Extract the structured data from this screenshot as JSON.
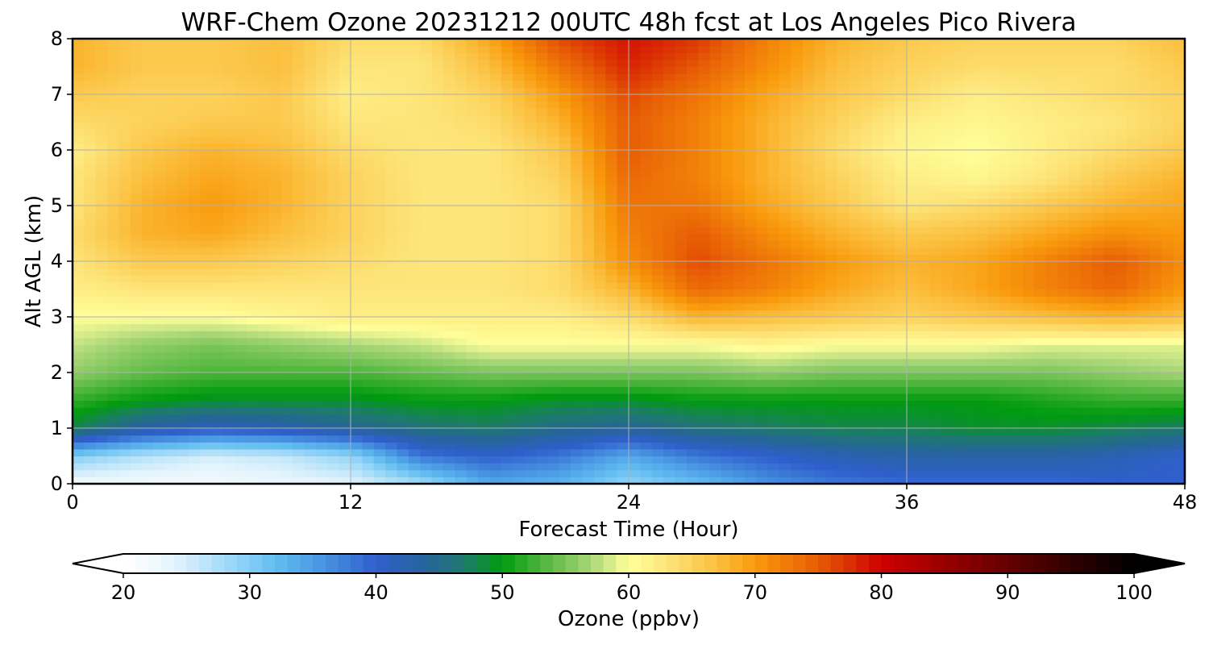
{
  "chart_data": {
    "type": "heatmap",
    "title": "WRF-Chem Ozone  20231212 00UTC 48h fcst at Los Angeles Pico Rivera",
    "xlabel": "Forecast Time (Hour)",
    "ylabel": "Alt AGL (km)",
    "xlim": [
      0,
      48
    ],
    "ylim": [
      0,
      8
    ],
    "xticks": [
      "0",
      "12",
      "24",
      "36",
      "48"
    ],
    "yticks": [
      "0",
      "1",
      "2",
      "3",
      "4",
      "5",
      "6",
      "7",
      "8"
    ],
    "grid": true,
    "x": [
      0,
      3,
      6,
      9,
      12,
      15,
      18,
      21,
      24,
      27,
      30,
      33,
      36,
      39,
      42,
      45,
      48
    ],
    "y": [
      0,
      0.5,
      1,
      1.5,
      2,
      2.5,
      3,
      3.5,
      4,
      4.5,
      5,
      5.5,
      6,
      6.5,
      7,
      7.5,
      8
    ],
    "z": [
      [
        22,
        22,
        22,
        23,
        24,
        28,
        34,
        33,
        29,
        32,
        36,
        38,
        39,
        39,
        39,
        40,
        40
      ],
      [
        30,
        27,
        25,
        26,
        29,
        38,
        40,
        38,
        34,
        38,
        40,
        42,
        43,
        43,
        43,
        42,
        40
      ],
      [
        48,
        43,
        41,
        42,
        44,
        46,
        47,
        45,
        44,
        46,
        47,
        48,
        48,
        49,
        49,
        48,
        47
      ],
      [
        52,
        50,
        49,
        49,
        49,
        50,
        50,
        49,
        49,
        50,
        50,
        50,
        50,
        50,
        51,
        52,
        52
      ],
      [
        56,
        54,
        53,
        53,
        53,
        54,
        55,
        55,
        55,
        55,
        56,
        55,
        55,
        55,
        55,
        56,
        57
      ],
      [
        58,
        56,
        55,
        56,
        57,
        58,
        60,
        60,
        60,
        60,
        61,
        60,
        60,
        60,
        59,
        59,
        59
      ],
      [
        60,
        60,
        60,
        61,
        62,
        62,
        62,
        62,
        64,
        68,
        67,
        66,
        65,
        66,
        67,
        68,
        67
      ],
      [
        62,
        63,
        63,
        63,
        63,
        63,
        63,
        64,
        68,
        74,
        72,
        69,
        67,
        69,
        72,
        74,
        70
      ],
      [
        63,
        66,
        66,
        65,
        64,
        63,
        63,
        64,
        71,
        76,
        73,
        70,
        68,
        69,
        72,
        75,
        71
      ],
      [
        64,
        68,
        69,
        67,
        65,
        63,
        63,
        64,
        72,
        75,
        71,
        68,
        66,
        67,
        69,
        71,
        70
      ],
      [
        63,
        68,
        70,
        68,
        65,
        63,
        63,
        64,
        73,
        73,
        69,
        66,
        63,
        64,
        66,
        68,
        69
      ],
      [
        63,
        67,
        69,
        68,
        65,
        63,
        63,
        65,
        74,
        72,
        68,
        65,
        62,
        61,
        63,
        66,
        68
      ],
      [
        62,
        66,
        68,
        67,
        64,
        63,
        63,
        66,
        75,
        72,
        68,
        64,
        61,
        60,
        62,
        64,
        66
      ],
      [
        64,
        65,
        66,
        66,
        63,
        63,
        64,
        68,
        75,
        72,
        68,
        65,
        62,
        61,
        62,
        63,
        65
      ],
      [
        66,
        65,
        65,
        66,
        62,
        63,
        65,
        70,
        76,
        73,
        69,
        66,
        64,
        62,
        63,
        64,
        65
      ],
      [
        68,
        66,
        66,
        67,
        63,
        63,
        67,
        73,
        78,
        75,
        71,
        67,
        65,
        64,
        64,
        64,
        66
      ],
      [
        68,
        66,
        66,
        67,
        64,
        64,
        69,
        76,
        79,
        77,
        72,
        68,
        66,
        65,
        65,
        65,
        67
      ]
    ],
    "colorbar": {
      "label": "Ozone  (ppbv)",
      "range": [
        20,
        100
      ],
      "ticks": [
        "20",
        "30",
        "40",
        "50",
        "60",
        "70",
        "80",
        "90",
        "100"
      ],
      "extend": "both"
    }
  },
  "colors": {
    "stops": [
      [
        20,
        "#ffffff"
      ],
      [
        24,
        "#e4f4fc"
      ],
      [
        29,
        "#93d4f7"
      ],
      [
        32,
        "#63bdf0"
      ],
      [
        35,
        "#4d9ee6"
      ],
      [
        40,
        "#2f5fcc"
      ],
      [
        44,
        "#26649a"
      ],
      [
        47,
        "#1d7a6c"
      ],
      [
        50,
        "#009b0e"
      ],
      [
        53,
        "#4bb43a"
      ],
      [
        57,
        "#a8d678"
      ],
      [
        60,
        "#ffff9a"
      ],
      [
        63,
        "#fde57a"
      ],
      [
        67,
        "#fbbf3e"
      ],
      [
        70,
        "#f99a0c"
      ],
      [
        75,
        "#e75c05"
      ],
      [
        80,
        "#cd0000"
      ],
      [
        88,
        "#7a0000"
      ],
      [
        95,
        "#300000"
      ],
      [
        100,
        "#000000"
      ]
    ],
    "grid": "#b0b0b0",
    "frame": "#000000"
  }
}
